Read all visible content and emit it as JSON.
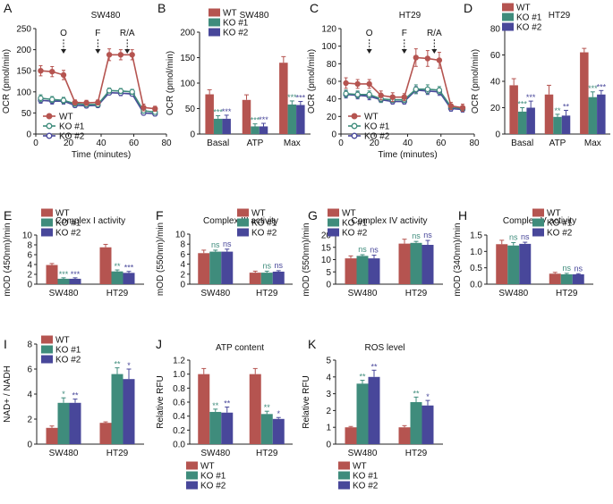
{
  "colors": {
    "WT": "#b55450",
    "KO1": "#3f8c7c",
    "KO2": "#48479a",
    "sig_ko1": "#3f8c7c",
    "sig_ko2": "#48479a",
    "axis": "#222222"
  },
  "chart_data": [
    {
      "id": "A",
      "letter": "A",
      "type": "line",
      "title": "SW480",
      "xlabel": "Time (minutes)",
      "ylabel": "OCR (pmol/min)",
      "xlim": [
        0,
        80
      ],
      "ylim": [
        0,
        250
      ],
      "xticks": [
        "0",
        "20",
        "40",
        "60",
        "80"
      ],
      "yticks": [
        "0",
        "50",
        "100",
        "150",
        "200",
        "250"
      ],
      "x": [
        3,
        10,
        17,
        24,
        31,
        38,
        45,
        52,
        59,
        66,
        73
      ],
      "series": [
        {
          "name": "WT",
          "legend": "WT",
          "values": [
            150,
            148,
            140,
            75,
            74,
            75,
            188,
            188,
            188,
            63,
            60
          ],
          "err": [
            12,
            12,
            11,
            6,
            6,
            6,
            14,
            12,
            12,
            8,
            6
          ]
        },
        {
          "name": "KO1",
          "legend": "KO #1",
          "values": [
            85,
            82,
            80,
            72,
            70,
            70,
            103,
            102,
            100,
            55,
            52
          ],
          "err": [
            8,
            7,
            7,
            6,
            5,
            5,
            6,
            6,
            6,
            5,
            5
          ]
        },
        {
          "name": "KO2",
          "legend": "KO #2",
          "values": [
            80,
            78,
            78,
            68,
            67,
            68,
            98,
            97,
            95,
            50,
            48
          ],
          "err": [
            7,
            7,
            7,
            5,
            5,
            5,
            5,
            6,
            5,
            5,
            5
          ]
        }
      ],
      "injections": [
        {
          "label": "O",
          "x": 17
        },
        {
          "label": "F",
          "x": 38
        },
        {
          "label": "R/A",
          "x": 56
        }
      ]
    },
    {
      "id": "B",
      "letter": "B",
      "type": "bar",
      "title": "SW480",
      "ylabel": "OCR (pmol/min)",
      "ylim": [
        0,
        200
      ],
      "yticks": [
        "0",
        "50",
        "100",
        "150",
        "200"
      ],
      "categories": [
        "Basal",
        "ATP",
        "Max"
      ],
      "series": [
        {
          "name": "WT",
          "legend": "WT",
          "values": [
            78,
            67,
            140
          ],
          "err": [
            9,
            10,
            12
          ],
          "sig": [
            "",
            "",
            ""
          ]
        },
        {
          "name": "KO1",
          "legend": "KO #1",
          "values": [
            30,
            15,
            58
          ],
          "err": [
            6,
            5,
            7
          ],
          "sig": [
            "***",
            "***",
            "***"
          ]
        },
        {
          "name": "KO2",
          "legend": "KO #2",
          "values": [
            30,
            15,
            57
          ],
          "err": [
            7,
            6,
            7
          ],
          "sig": [
            "***",
            "***",
            "***"
          ]
        }
      ]
    },
    {
      "id": "C",
      "letter": "C",
      "type": "line",
      "title": "HT29",
      "xlabel": "Time (minutes)",
      "ylabel": "OCR (pmol/min)",
      "xlim": [
        0,
        80
      ],
      "ylim": [
        0,
        120
      ],
      "xticks": [
        "0",
        "20",
        "40",
        "60",
        "80"
      ],
      "yticks": [
        "0",
        "20",
        "40",
        "60",
        "80",
        "100",
        "120"
      ],
      "x": [
        3,
        10,
        17,
        24,
        31,
        38,
        45,
        52,
        59,
        66,
        73
      ],
      "series": [
        {
          "name": "WT",
          "legend": "WT",
          "values": [
            58,
            57,
            57,
            44,
            42,
            42,
            87,
            86,
            84,
            32,
            30
          ],
          "err": [
            6,
            5,
            5,
            5,
            5,
            4,
            10,
            9,
            9,
            4,
            4
          ]
        },
        {
          "name": "KO1",
          "legend": "KO #1",
          "values": [
            46,
            45,
            45,
            40,
            39,
            39,
            51,
            51,
            50,
            31,
            29
          ],
          "err": [
            4,
            4,
            4,
            4,
            3,
            3,
            5,
            5,
            4,
            3,
            3
          ]
        },
        {
          "name": "KO2",
          "legend": "KO #2",
          "values": [
            45,
            44,
            43,
            39,
            37,
            37,
            50,
            49,
            48,
            29,
            28
          ],
          "err": [
            4,
            4,
            4,
            3,
            3,
            3,
            4,
            4,
            4,
            3,
            3
          ]
        }
      ],
      "injections": [
        {
          "label": "O",
          "x": 17
        },
        {
          "label": "F",
          "x": 38
        },
        {
          "label": "R/A",
          "x": 56
        }
      ]
    },
    {
      "id": "D",
      "letter": "D",
      "type": "bar",
      "title": "HT29",
      "ylabel": "OCR (pmol/min)",
      "ylim": [
        0,
        80
      ],
      "yticks": [
        "0",
        "20",
        "40",
        "60",
        "80"
      ],
      "categories": [
        "Basal",
        "ATP",
        "Max"
      ],
      "series": [
        {
          "name": "WT",
          "legend": "WT",
          "values": [
            37,
            30,
            62
          ],
          "err": [
            5,
            7,
            3
          ],
          "sig": [
            "",
            "",
            ""
          ]
        },
        {
          "name": "KO1",
          "legend": "KO #1",
          "values": [
            17,
            13,
            28
          ],
          "err": [
            3,
            2,
            4
          ],
          "sig": [
            "***",
            "**",
            "***"
          ]
        },
        {
          "name": "KO2",
          "legend": "KO #2",
          "values": [
            20,
            14,
            30
          ],
          "err": [
            5,
            4,
            3
          ],
          "sig": [
            "***",
            "**",
            "***"
          ]
        }
      ]
    },
    {
      "id": "E",
      "letter": "E",
      "type": "bar",
      "title": "Complex I activity",
      "ylabel": "mOD (450nm)/min",
      "ylim": [
        0,
        10
      ],
      "yticks": [
        "0",
        "2",
        "4",
        "6",
        "8",
        "10"
      ],
      "categories": [
        "SW480",
        "HT29"
      ],
      "series": [
        {
          "name": "WT",
          "legend": "WT",
          "values": [
            3.9,
            7.5
          ],
          "err": [
            0.3,
            0.6
          ],
          "sig": [
            "",
            ""
          ]
        },
        {
          "name": "KO1",
          "legend": "KO #1",
          "values": [
            1.1,
            2.6
          ],
          "err": [
            0.2,
            0.3
          ],
          "sig": [
            "***",
            "**"
          ]
        },
        {
          "name": "KO2",
          "legend": "KO #2",
          "values": [
            1.1,
            2.3
          ],
          "err": [
            0.2,
            0.3
          ],
          "sig": [
            "***",
            "***"
          ]
        }
      ]
    },
    {
      "id": "F",
      "letter": "F",
      "type": "bar",
      "title": "Complex III activity",
      "ylabel": "mOD (550nm)/min",
      "ylim": [
        0,
        10
      ],
      "yticks": [
        "0",
        "2",
        "4",
        "6",
        "8",
        "10"
      ],
      "categories": [
        "SW480",
        "HT29"
      ],
      "series": [
        {
          "name": "WT",
          "legend": "WT",
          "values": [
            6.2,
            2.3
          ],
          "err": [
            0.6,
            0.3
          ],
          "sig": [
            "",
            ""
          ]
        },
        {
          "name": "KO1",
          "legend": "KO #1",
          "values": [
            6.5,
            2.3
          ],
          "err": [
            0.3,
            0.3
          ],
          "sig": [
            "ns",
            "ns"
          ]
        },
        {
          "name": "KO2",
          "legend": "KO #2",
          "values": [
            6.5,
            2.5
          ],
          "err": [
            0.5,
            0.2
          ],
          "sig": [
            "ns",
            "ns"
          ]
        }
      ]
    },
    {
      "id": "G",
      "letter": "G",
      "type": "bar",
      "title": "Complex IV activity",
      "ylabel": "mOD (550nm)/min",
      "ylim": [
        0,
        20
      ],
      "yticks": [
        "0",
        "5",
        "10",
        "15",
        "20"
      ],
      "categories": [
        "SW480",
        "HT29"
      ],
      "series": [
        {
          "name": "WT",
          "legend": "WT",
          "values": [
            10.5,
            16.5
          ],
          "err": [
            1.0,
            1.8
          ],
          "sig": [
            "",
            ""
          ]
        },
        {
          "name": "KO1",
          "legend": "KO #1",
          "values": [
            11.5,
            16.8
          ],
          "err": [
            0.5,
            0.6
          ],
          "sig": [
            "ns",
            "ns"
          ]
        },
        {
          "name": "KO2",
          "legend": "KO #2",
          "values": [
            10.5,
            16.0
          ],
          "err": [
            1.3,
            1.8
          ],
          "sig": [
            "ns",
            "ns"
          ]
        }
      ]
    },
    {
      "id": "H",
      "letter": "H",
      "type": "bar",
      "title": "Complex V activity",
      "ylabel": "mOD (340nm)/min",
      "ylim": [
        0,
        1.5
      ],
      "yticks": [
        "0.0",
        "0.5",
        "1.0",
        "1.5"
      ],
      "categories": [
        "SW480",
        "HT29"
      ],
      "series": [
        {
          "name": "WT",
          "legend": "WT",
          "values": [
            1.22,
            0.32
          ],
          "err": [
            0.12,
            0.04
          ],
          "sig": [
            "",
            ""
          ]
        },
        {
          "name": "KO1",
          "legend": "KO #1",
          "values": [
            1.18,
            0.3
          ],
          "err": [
            0.09,
            0.03
          ],
          "sig": [
            "ns",
            "ns"
          ]
        },
        {
          "name": "KO2",
          "legend": "KO #2",
          "values": [
            1.23,
            0.3
          ],
          "err": [
            0.05,
            0.02
          ],
          "sig": [
            "ns",
            "ns"
          ]
        }
      ]
    },
    {
      "id": "I",
      "letter": "I",
      "type": "bar",
      "title": "",
      "ylabel": "NAD+ / NADH",
      "ylim": [
        0,
        8
      ],
      "yticks": [
        "0",
        "2",
        "4",
        "6",
        "8"
      ],
      "categories": [
        "SW480",
        "HT29"
      ],
      "series": [
        {
          "name": "WT",
          "legend": "WT",
          "values": [
            1.3,
            1.7
          ],
          "err": [
            0.15,
            0.08
          ],
          "sig": [
            "",
            ""
          ]
        },
        {
          "name": "KO1",
          "legend": "KO #1",
          "values": [
            3.3,
            5.6
          ],
          "err": [
            0.4,
            0.5
          ],
          "sig": [
            "*",
            "**"
          ]
        },
        {
          "name": "KO2",
          "legend": "KO #2",
          "values": [
            3.3,
            5.2
          ],
          "err": [
            0.3,
            0.8
          ],
          "sig": [
            "**",
            "*"
          ]
        }
      ]
    },
    {
      "id": "J",
      "letter": "J",
      "type": "bar",
      "title": "ATP content",
      "ylabel": "Relative RFU",
      "ylim": [
        0,
        1.2
      ],
      "yticks": [
        "0.0",
        "0.2",
        "0.4",
        "0.6",
        "0.8",
        "1.0",
        "1.2"
      ],
      "categories": [
        "SW480",
        "HT29"
      ],
      "series": [
        {
          "name": "WT",
          "legend": "WT",
          "values": [
            1.0,
            1.0
          ],
          "err": [
            0.08,
            0.08
          ],
          "sig": [
            "",
            ""
          ]
        },
        {
          "name": "KO1",
          "legend": "KO #1",
          "values": [
            0.46,
            0.43
          ],
          "err": [
            0.04,
            0.04
          ],
          "sig": [
            "**",
            "**"
          ]
        },
        {
          "name": "KO2",
          "legend": "KO #2",
          "values": [
            0.45,
            0.36
          ],
          "err": [
            0.08,
            0.02
          ],
          "sig": [
            "**",
            "*"
          ]
        }
      ]
    },
    {
      "id": "K",
      "letter": "K",
      "type": "bar",
      "title": "ROS level",
      "ylabel": "Relative RFU",
      "ylim": [
        0,
        5
      ],
      "yticks": [
        "0",
        "1",
        "2",
        "3",
        "4",
        "5"
      ],
      "categories": [
        "SW480",
        "HT29"
      ],
      "series": [
        {
          "name": "WT",
          "legend": "WT",
          "values": [
            1.0,
            1.0
          ],
          "err": [
            0.05,
            0.1
          ],
          "sig": [
            "",
            ""
          ]
        },
        {
          "name": "KO1",
          "legend": "KO #1",
          "values": [
            3.6,
            2.5
          ],
          "err": [
            0.2,
            0.3
          ],
          "sig": [
            "**",
            "**"
          ]
        },
        {
          "name": "KO2",
          "legend": "KO #2",
          "values": [
            4.0,
            2.3
          ],
          "err": [
            0.4,
            0.3
          ],
          "sig": [
            "**",
            "*"
          ]
        }
      ]
    }
  ]
}
